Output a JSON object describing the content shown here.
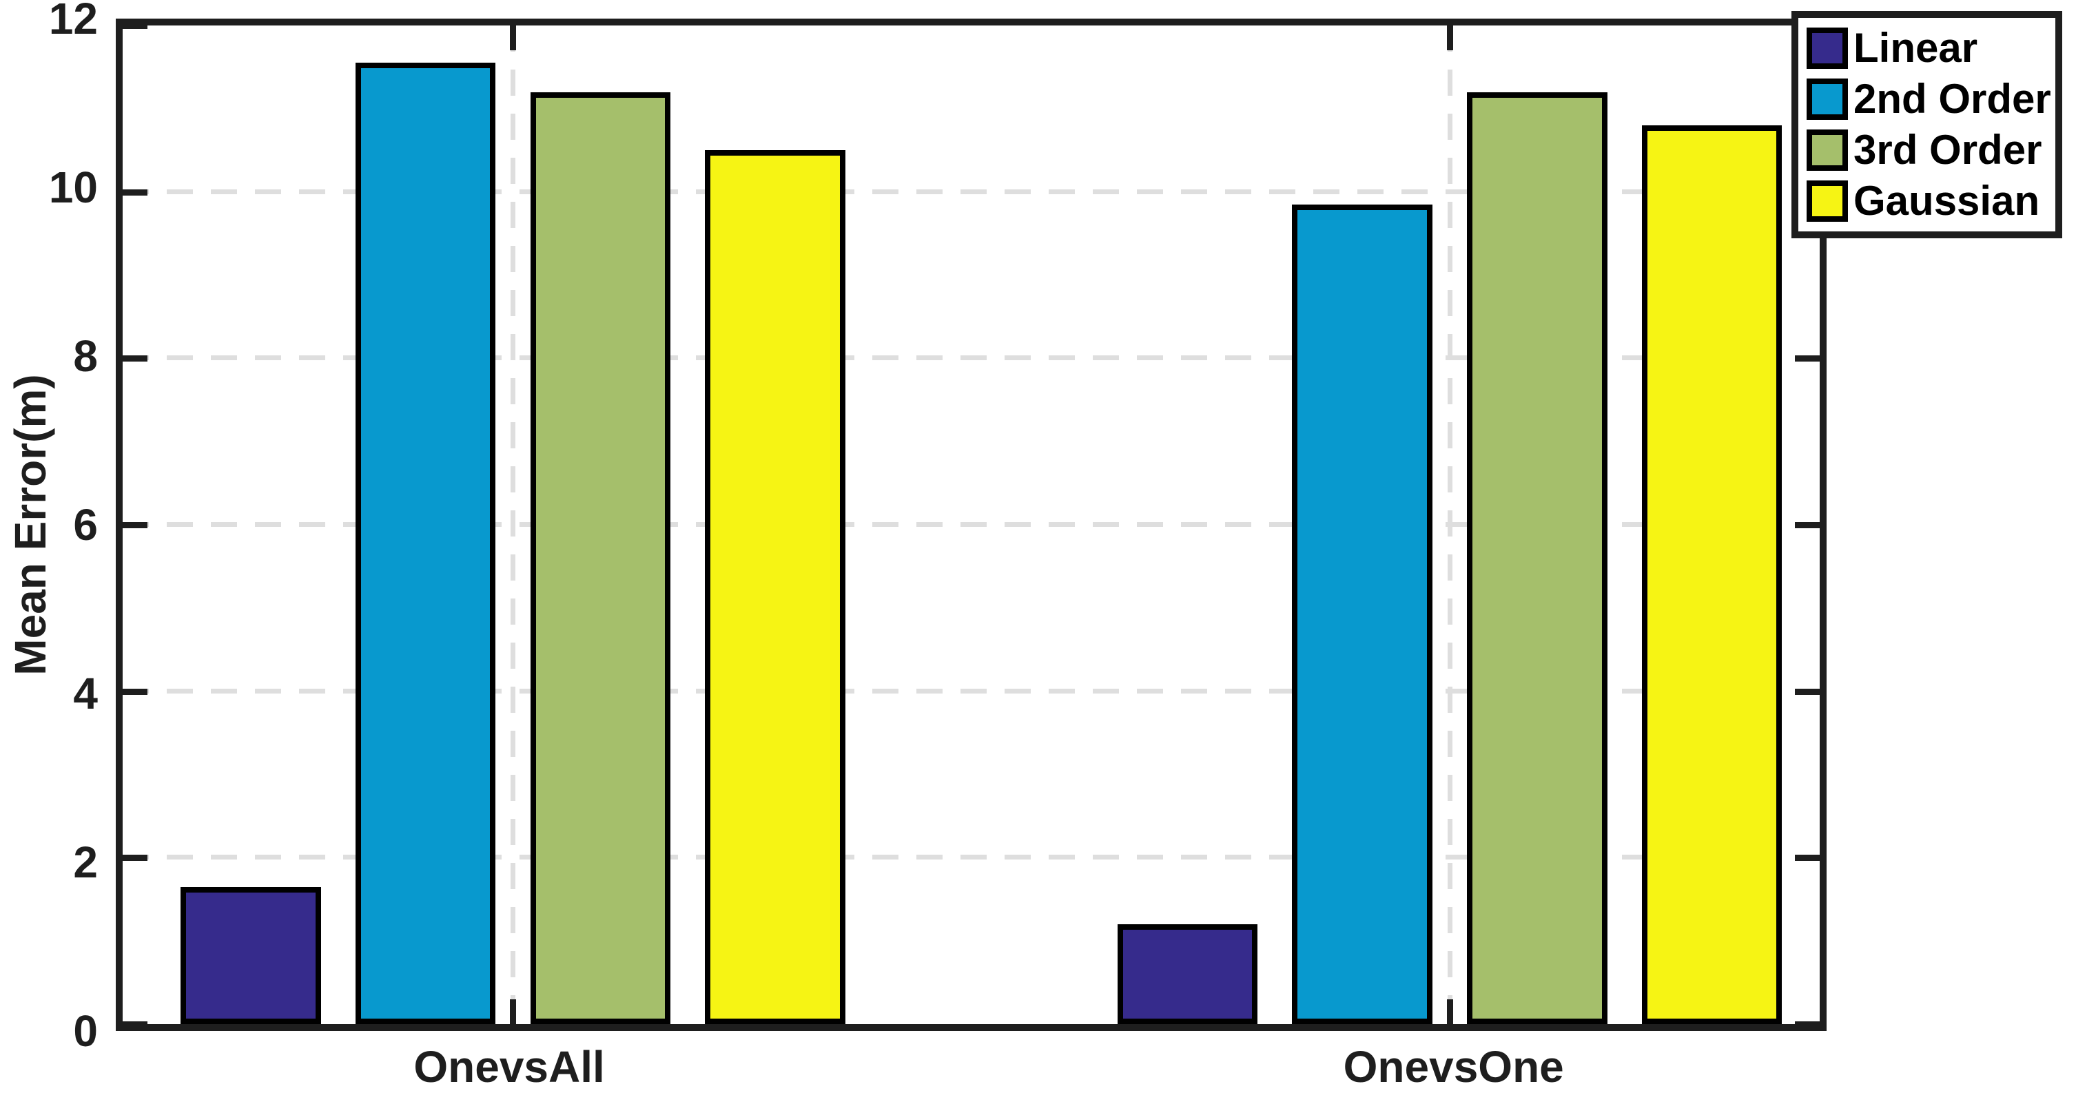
{
  "chart_data": {
    "type": "bar",
    "title": "",
    "xlabel": "",
    "ylabel": "Mean Error(m)",
    "ylim": [
      0,
      12
    ],
    "yticks": [
      0,
      2,
      4,
      6,
      8,
      10,
      12
    ],
    "grid": "dashed light-gray horizontal lines at y ticks and vertical lines at category centers",
    "legend_position": "top-right, overlapping plot corner",
    "categories": [
      "OnevsAll",
      "OnevsOne"
    ],
    "series": [
      {
        "name": "Linear",
        "color": "#362B8C",
        "values": [
          1.65,
          1.2
        ]
      },
      {
        "name": "2nd Order",
        "color": "#0899CE",
        "values": [
          11.55,
          9.85
        ]
      },
      {
        "name": "3rd Order",
        "color": "#A5BF6B",
        "values": [
          11.2,
          11.2
        ]
      },
      {
        "name": "Gaussian",
        "color": "#F6F414",
        "values": [
          10.5,
          10.8
        ]
      }
    ],
    "layout_hints": {
      "group_centers_pct": [
        23.0,
        78.2
      ],
      "bar_width_pct": 8.26,
      "bar_pitch_pct": 10.3,
      "bar_outline_color": "#000000",
      "axis_color": "#1e1e1e",
      "grid_color": "#dedede"
    }
  }
}
